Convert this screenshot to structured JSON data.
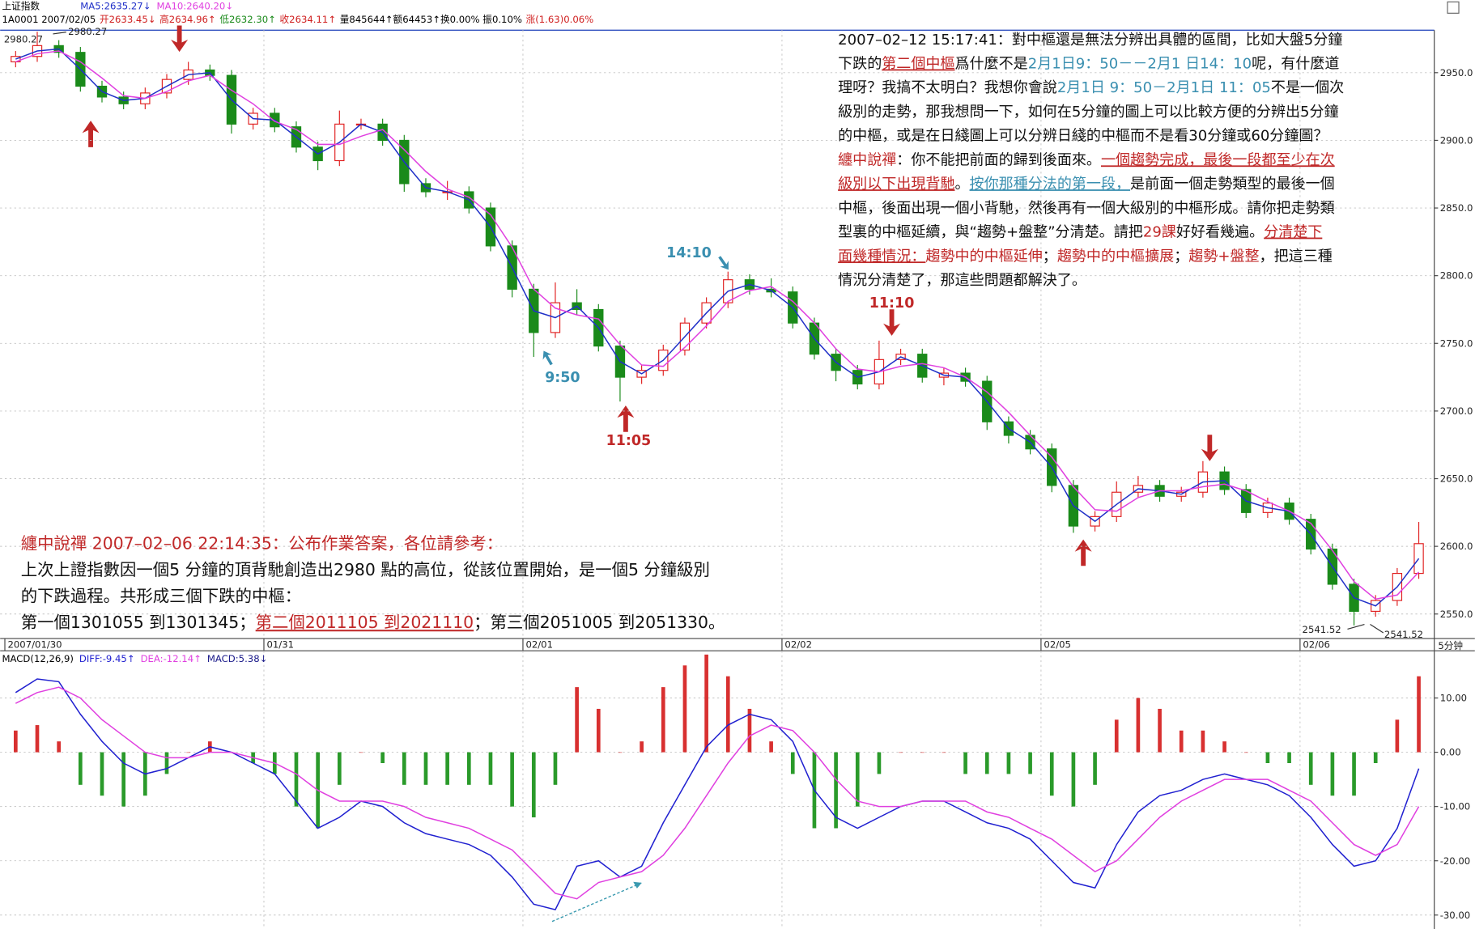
{
  "chart_data": [
    {
      "type": "candlestick",
      "title": "上证指数",
      "info": [
        {
          "text": "1A0001 2007/02/05",
          "color": "#000000"
        },
        {
          "text": "开2633.45↓",
          "color": "#d02020"
        },
        {
          "text": "高2634.96↑",
          "color": "#d02020"
        },
        {
          "text": "低2632.30↑",
          "color": "#1a8a1a"
        },
        {
          "text": "收2634.11↑",
          "color": "#d02020"
        },
        {
          "text": "量845644↑额64453↑换0.00% 振0.10%",
          "color": "#000000"
        },
        {
          "text": "涨(1.63)0.06%",
          "color": "#d02020"
        }
      ],
      "categories": [
        "2007/01/30",
        null,
        null,
        null,
        null,
        null,
        null,
        null,
        null,
        null,
        null,
        null,
        "01/31",
        null,
        null,
        null,
        null,
        null,
        null,
        null,
        null,
        null,
        null,
        null,
        "02/01",
        null,
        null,
        null,
        null,
        null,
        null,
        null,
        null,
        null,
        null,
        null,
        "02/02",
        null,
        null,
        null,
        null,
        null,
        null,
        null,
        null,
        null,
        null,
        null,
        "02/05",
        null,
        null,
        null,
        null,
        null,
        null,
        null,
        null,
        null,
        null,
        null,
        "02/06",
        null,
        null,
        null,
        null,
        null
      ],
      "xunit": "5分钟",
      "open": [
        2958,
        2962,
        2970,
        2965,
        2940,
        2932,
        2927,
        2935,
        2945,
        2952,
        2948,
        2912,
        2920,
        2910,
        2895,
        2885,
        2912,
        2912,
        2900,
        2868,
        2862,
        2862,
        2850,
        2822,
        2790,
        2758,
        2780,
        2775,
        2748,
        2725,
        2730,
        2745,
        2765,
        2780,
        2797,
        2790,
        2788,
        2765,
        2742,
        2730,
        2720,
        2738,
        2742,
        2725,
        2728,
        2722,
        2692,
        2682,
        2672,
        2645,
        2615,
        2622,
        2640,
        2645,
        2637,
        2640,
        2655,
        2642,
        2625,
        2632,
        2620,
        2598,
        2572,
        2552,
        2560,
        2580
      ],
      "high": [
        2966,
        2980.27,
        2974,
        2969,
        2944,
        2936,
        2939,
        2949,
        2958,
        2956,
        2952,
        2924,
        2924,
        2914,
        2899,
        2922,
        2916,
        2916,
        2904,
        2872,
        2870,
        2866,
        2854,
        2826,
        2794,
        2795,
        2790,
        2779,
        2752,
        2734,
        2749,
        2769,
        2784,
        2803,
        2801,
        2798,
        2792,
        2769,
        2746,
        2734,
        2752,
        2746,
        2746,
        2732,
        2732,
        2726,
        2696,
        2686,
        2676,
        2649,
        2626,
        2648,
        2652,
        2649,
        2644,
        2663,
        2659,
        2646,
        2636,
        2636,
        2624,
        2602,
        2576,
        2564,
        2584,
        2618
      ],
      "low": [
        2954,
        2958,
        2961,
        2936,
        2928,
        2923,
        2923,
        2931,
        2941,
        2944,
        2905,
        2908,
        2906,
        2891,
        2878,
        2881,
        2908,
        2896,
        2862,
        2858,
        2856,
        2846,
        2818,
        2784,
        2740,
        2754,
        2771,
        2744,
        2707,
        2720,
        2726,
        2741,
        2761,
        2776,
        2786,
        2784,
        2761,
        2738,
        2722,
        2716,
        2716,
        2734,
        2721,
        2719,
        2718,
        2686,
        2676,
        2668,
        2640,
        2610,
        2611,
        2618,
        2636,
        2633,
        2633,
        2636,
        2638,
        2621,
        2621,
        2616,
        2594,
        2568,
        2541.52,
        2548,
        2556,
        2576
      ],
      "close": [
        2962,
        2970,
        2965,
        2940,
        2932,
        2927,
        2935,
        2945,
        2952,
        2948,
        2912,
        2920,
        2910,
        2895,
        2885,
        2912,
        2912,
        2900,
        2868,
        2862,
        2862,
        2850,
        2822,
        2790,
        2758,
        2780,
        2775,
        2748,
        2725,
        2730,
        2745,
        2765,
        2780,
        2797,
        2790,
        2788,
        2765,
        2742,
        2730,
        2720,
        2738,
        2742,
        2725,
        2728,
        2722,
        2692,
        2682,
        2672,
        2645,
        2615,
        2622,
        2640,
        2645,
        2637,
        2640,
        2655,
        2642,
        2625,
        2632,
        2620,
        2598,
        2572,
        2552,
        2560,
        2580,
        2602
      ],
      "up_color": "#e02020",
      "down_color": "#1a8a1a",
      "series": [
        {
          "name": "MA5:2635.27↓",
          "color": "#2030c8",
          "values": [
            2960,
            2966,
            2967.5,
            2952.5,
            2936,
            2929.5,
            2931,
            2940,
            2948.5,
            2950,
            2930,
            2916,
            2915,
            2902.5,
            2890,
            2898.5,
            2912,
            2906,
            2884,
            2865,
            2862,
            2856,
            2836,
            2806,
            2774,
            2769,
            2777.5,
            2761.5,
            2736.5,
            2727.5,
            2737.5,
            2755,
            2772.5,
            2788.5,
            2793.5,
            2789,
            2776.5,
            2753.5,
            2736,
            2725,
            2729,
            2740,
            2733.5,
            2726.5,
            2725,
            2707,
            2687,
            2677,
            2658.5,
            2630,
            2618.5,
            2631,
            2642.5,
            2641,
            2638.5,
            2647.5,
            2648.5,
            2633.5,
            2628.5,
            2626,
            2609,
            2585,
            2562,
            2556,
            2570,
            2591
          ]
        },
        {
          "name": "MA10:2640.20↓",
          "color": "#e040e0",
          "values": [
            2958,
            2964,
            2966,
            2958,
            2946,
            2933,
            2931,
            2936,
            2944,
            2948,
            2937,
            2927,
            2914,
            2908,
            2897,
            2897,
            2903,
            2908,
            2893,
            2877,
            2864,
            2858,
            2845,
            2821,
            2790,
            2776,
            2771,
            2768,
            2749,
            2734,
            2733,
            2747,
            2763,
            2781,
            2789,
            2792,
            2781,
            2765,
            2746,
            2731,
            2729,
            2733,
            2735,
            2732,
            2725,
            2714,
            2699,
            2682,
            2666,
            2644,
            2627,
            2626,
            2636,
            2641,
            2641,
            2644,
            2646,
            2641,
            2633,
            2626,
            2617,
            2597,
            2574,
            2561,
            2564,
            2581
          ]
        }
      ],
      "ylim": [
        2531.9,
        2981.4
      ],
      "yticks": [
        {
          "value": 2550,
          "label": "2550.0"
        },
        {
          "value": 2600,
          "label": "2600.0"
        },
        {
          "value": 2650,
          "label": "2650.0"
        },
        {
          "value": 2700,
          "label": "2700.0"
        },
        {
          "value": 2750,
          "label": "2750.0"
        },
        {
          "value": 2800,
          "label": "2800.0"
        },
        {
          "value": 2850,
          "label": "2850.0"
        },
        {
          "value": 2900,
          "label": "2900.0"
        },
        {
          "value": 2950,
          "label": "2950.0"
        }
      ],
      "grid": true,
      "extreme_labels": [
        2980.27,
        2980.27,
        2541.52,
        2541.52
      ],
      "annotations": [
        "9:50",
        "11:05",
        "14:10",
        "11:10"
      ]
    },
    {
      "type": "macd",
      "title": "MACD(12,26,9)",
      "series": [
        {
          "name": "DIFF:-9.45↑",
          "color": "#2020d0",
          "values": [
            11,
            13.5,
            13,
            7,
            2,
            -2,
            -4,
            -3,
            -1,
            1,
            0,
            -2,
            -4,
            -9,
            -14,
            -12,
            -9,
            -10,
            -13,
            -15,
            -16,
            -17,
            -19,
            -23,
            -28,
            -29,
            -21,
            -20,
            -23,
            -21,
            -13,
            -6,
            1,
            5,
            7,
            6,
            2,
            -7,
            -12,
            -14,
            -12,
            -10,
            -9,
            -9,
            -11,
            -13,
            -14,
            -16,
            -20,
            -24,
            -25,
            -17,
            -11,
            -8,
            -7,
            -5,
            -4,
            -5,
            -6,
            -8,
            -12,
            -17,
            -21,
            -20,
            -14,
            -3
          ]
        },
        {
          "name": "DEA:-12.14↑",
          "color": "#e040e0",
          "values": [
            9,
            11,
            12,
            10,
            6,
            3,
            0,
            -1,
            -1,
            0,
            0,
            -1,
            -2,
            -4,
            -7,
            -9,
            -9,
            -9,
            -10,
            -12,
            -13,
            -14,
            -16,
            -18,
            -22,
            -26,
            -27,
            -24,
            -23,
            -22,
            -19,
            -14,
            -8,
            -2,
            3,
            5,
            4,
            0,
            -5,
            -9,
            -10,
            -10,
            -9,
            -9,
            -9,
            -11,
            -12,
            -14,
            -16,
            -19,
            -22,
            -20,
            -16,
            -12,
            -9,
            -7,
            -5,
            -5,
            -5,
            -7,
            -9,
            -13,
            -17,
            -19,
            -17,
            -10
          ]
        },
        {
          "name": "MACD:5.38↓",
          "type": "bar",
          "color": "#d83030",
          "negative_color": "#2a9a2a",
          "values": [
            4,
            5,
            2,
            -6,
            -8,
            -10,
            -8,
            -4,
            0,
            2,
            0,
            -2,
            -4,
            -10,
            -14,
            -6,
            0,
            -2,
            -6,
            -6,
            -6,
            -6,
            -6,
            -10,
            -12,
            -6,
            12,
            8,
            0,
            2,
            12,
            16,
            18,
            14,
            8,
            2,
            -4,
            -14,
            -14,
            -10,
            -4,
            0,
            0,
            0,
            -4,
            -4,
            -4,
            -4,
            -8,
            -10,
            -6,
            6,
            10,
            8,
            4,
            4,
            2,
            0,
            -2,
            -2,
            -6,
            -8,
            -8,
            -2,
            6,
            14
          ]
        }
      ],
      "ylim": [
        -31.7,
        18.7
      ],
      "yticks": [
        {
          "value": 10,
          "label": "10.00"
        },
        {
          "value": 0,
          "label": "0.00"
        },
        {
          "value": -10,
          "label": "-10.00"
        },
        {
          "value": -20,
          "label": "-20.00"
        },
        {
          "value": -30,
          "label": "-30.00"
        }
      ],
      "grid": true
    }
  ],
  "commentary": {
    "reply": [
      [
        {
          "text": "2007–02–12 15:17:41：對中樞還是無法分辨出具體的區間，比如大盤5分鐘",
          "style": "plain"
        }
      ],
      [
        {
          "text": "下跌的",
          "style": "plain"
        },
        {
          "text": "第二個中樞",
          "style": "red-underline"
        },
        {
          "text": "爲什麼不是",
          "style": "plain"
        },
        {
          "text": "2月1日9：50－－2月1 日14：10",
          "style": "blue"
        },
        {
          "text": "呢，有什麼道",
          "style": "plain"
        }
      ],
      [
        {
          "text": "理呀？我搞不太明白？我想你會說",
          "style": "plain"
        },
        {
          "text": "2月1日 9：50－2月1日 11：05",
          "style": "blue"
        },
        {
          "text": "不是一個次",
          "style": "plain"
        }
      ],
      [
        {
          "text": "級別的走勢，那我想問一下，如何在5分鐘的圖上可以比較方便的分辨出5分鐘",
          "style": "plain"
        }
      ],
      [
        {
          "text": "的中樞，或是在日綫圖上可以分辨日綫的中樞而不是看30分鐘或60分鐘圖？",
          "style": "plain"
        }
      ],
      [
        {
          "text": "纏中說禪",
          "style": "red"
        },
        {
          "text": "：你不能把前面的歸到後面來。",
          "style": "plain"
        },
        {
          "text": "一個趨勢完成，最後一段都至少在次",
          "style": "red-underline"
        }
      ],
      [
        {
          "text": "級別以下出現背馳",
          "style": "red-underline"
        },
        {
          "text": "。",
          "style": "plain"
        },
        {
          "text": "按你那種分法的第一段，",
          "style": "blue-underline"
        },
        {
          "text": "是前面一個走勢類型的最後一個",
          "style": "plain"
        }
      ],
      [
        {
          "text": "中樞，後面出現一個小背馳，然後再有一個大級別的中樞形成。請你把走勢類",
          "style": "plain"
        }
      ],
      [
        {
          "text": "型裏的中樞延續，與“趨勢+盤整”分清楚。請把",
          "style": "plain"
        },
        {
          "text": "29課",
          "style": "red"
        },
        {
          "text": "好好看幾遍。",
          "style": "plain"
        },
        {
          "text": "分清楚下",
          "style": "red-underline"
        }
      ],
      [
        {
          "text": "面幾種情況：",
          "style": "red-underline"
        },
        {
          "text": "趨勢中的中樞延伸",
          "style": "red"
        },
        {
          "text": "；",
          "style": "plain"
        },
        {
          "text": "趨勢中的中樞擴展",
          "style": "red"
        },
        {
          "text": "；",
          "style": "plain"
        },
        {
          "text": "趨勢+盤整",
          "style": "red"
        },
        {
          "text": "，把這三種",
          "style": "plain"
        }
      ],
      [
        {
          "text": "情況分清楚了，那這些問題都解決了。",
          "style": "plain"
        }
      ]
    ],
    "answer": [
      [
        {
          "text": "纏中說禪 2007–02–06 22:14:35：公布作業答案，各位請參考：",
          "style": "red"
        }
      ],
      [
        {
          "text": "上次上證指數因一個5 分鐘的頂背馳創造出2980 點的高位，從該位置開始，是一個5 分鐘級別",
          "style": "plain"
        }
      ],
      [
        {
          "text": "的下跌過程。共形成三個下跌的中樞：",
          "style": "plain"
        }
      ],
      [
        {
          "text": "第一個1301055 到1301345；",
          "style": "plain"
        },
        {
          "text": "第二個2011105 到2021110",
          "style": "red-underline"
        },
        {
          "text": "；第三個2051005 到2051330。",
          "style": "plain"
        }
      ]
    ]
  }
}
